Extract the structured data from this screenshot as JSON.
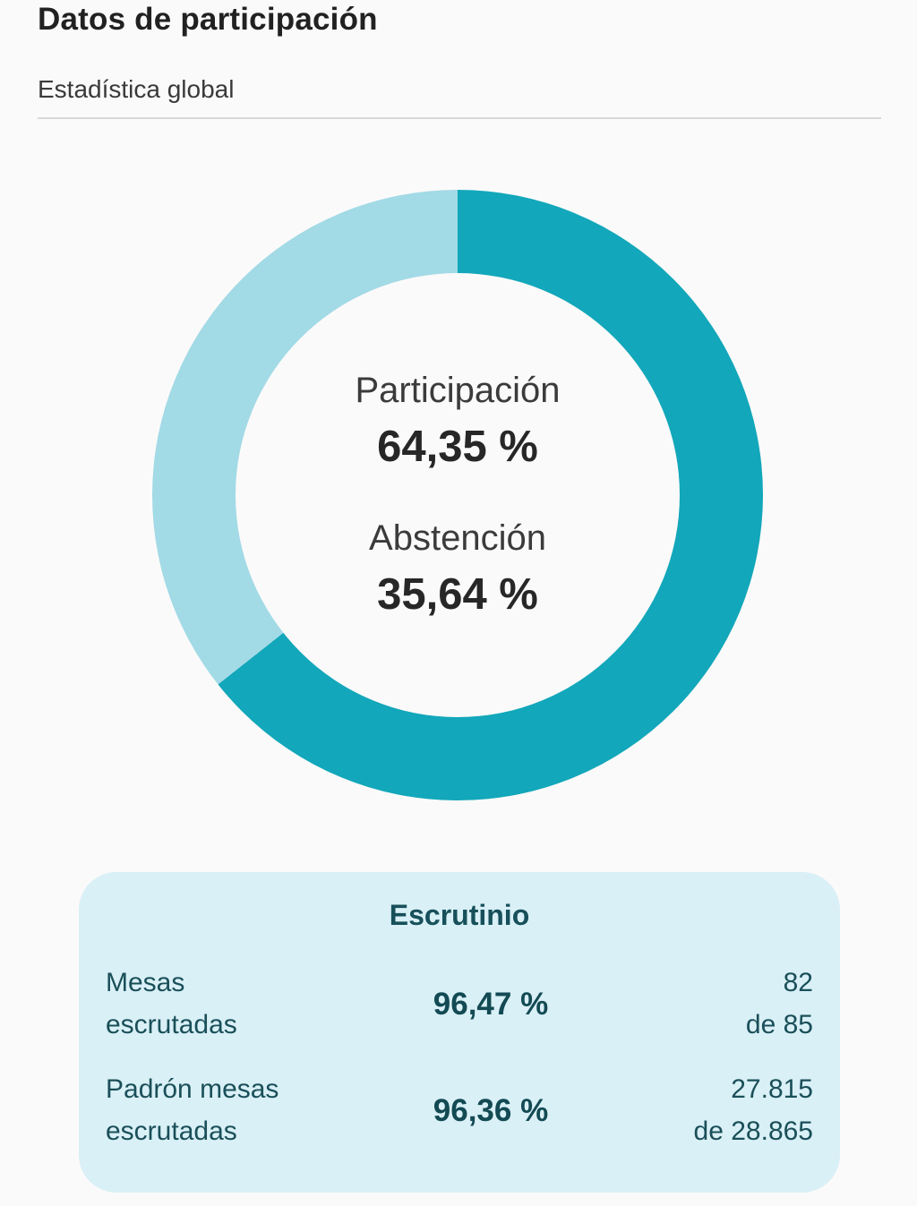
{
  "page": {
    "title": "Datos de participación",
    "subtitle": "Estadística global"
  },
  "chart_data": {
    "type": "pie",
    "variant": "donut",
    "title": "Datos de participación",
    "start_angle_deg": 0,
    "direction": "clockwise",
    "segments": [
      {
        "label": "Participación",
        "value": 64.35,
        "display": "64,35 %",
        "color": "#12a7ba"
      },
      {
        "label": "Abstención",
        "value": 35.64,
        "display": "35,64 %",
        "color": "#a2dae6"
      }
    ],
    "center_text": {
      "participation_label": "Participación",
      "participation_value": "64,35 %",
      "abstention_label": "Abstención",
      "abstention_value": "35,64 %"
    },
    "legend_position": "none"
  },
  "escrutinio": {
    "title": "Escrutinio",
    "rows": [
      {
        "label": "Mesas\nescrutadas",
        "percent": "96,47 %",
        "count": "82\nde 85"
      },
      {
        "label": "Padrón mesas\nescrutadas",
        "percent": "96,36 %",
        "count": "27.815\nde 28.865"
      }
    ]
  },
  "colors": {
    "accent_dark_teal": "#12a7ba",
    "accent_light_teal": "#a2dae6",
    "panel_background": "#d9f0f6",
    "panel_text": "#17505a",
    "page_background": "#fbfafa",
    "heading_text": "#212121"
  }
}
